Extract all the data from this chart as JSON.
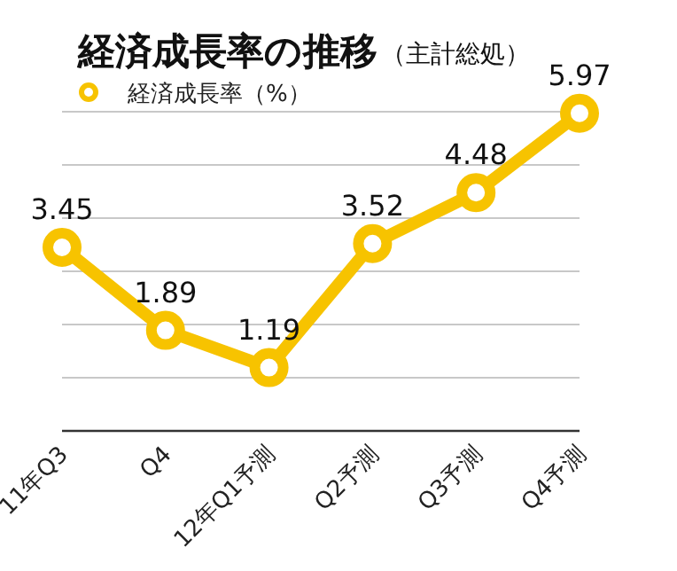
{
  "chart_data": {
    "type": "line",
    "title": "経済成長率の推移",
    "subtitle": "（主計総処）",
    "categories": [
      "11年Q3",
      "Q4",
      "12年Q1予測",
      "Q2予測",
      "Q3予測",
      "Q4予測"
    ],
    "series": [
      {
        "name": "経済成長率（%）",
        "color": "#f7c300",
        "values": [
          3.45,
          1.89,
          1.19,
          3.52,
          4.48,
          5.97
        ]
      }
    ],
    "ylim": [
      0,
      6
    ],
    "yticks": [
      {
        "value": 0,
        "label": null
      },
      {
        "value": 1,
        "label": null
      },
      {
        "value": 2,
        "label": null
      },
      {
        "value": 3,
        "label": null
      },
      {
        "value": 4,
        "label": null
      },
      {
        "value": 5,
        "label": null
      },
      {
        "value": 6,
        "label": null
      }
    ],
    "tick_labels": "x",
    "grid": "y",
    "legend": "top left",
    "marker": "circle",
    "line_style": "solid",
    "data_labels": true
  }
}
